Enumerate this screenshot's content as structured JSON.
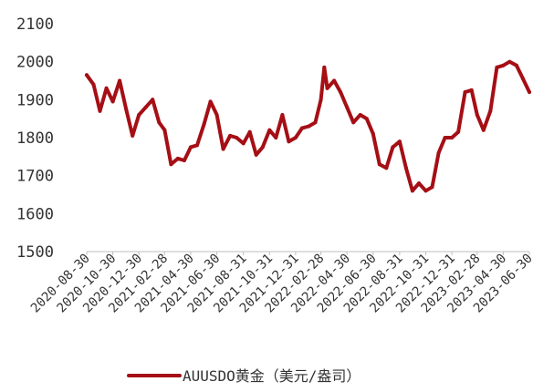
{
  "chart_data": {
    "type": "line",
    "title": "",
    "xlabel": "",
    "ylabel": "",
    "ylim": [
      1500,
      2100
    ],
    "yticks": [
      1500,
      1600,
      1700,
      1800,
      1900,
      2000,
      2100
    ],
    "grid": false,
    "legend_position": "bottom-center",
    "x_tick_labels": [
      "2020-08-30",
      "2020-10-30",
      "2020-12-30",
      "2021-02-28",
      "2021-04-30",
      "2021-06-30",
      "2021-08-31",
      "2021-10-31",
      "2021-12-31",
      "2022-02-28",
      "2022-04-30",
      "2022-06-30",
      "2022-08-31",
      "2022-10-31",
      "2022-12-31",
      "2023-02-28",
      "2023-04-30",
      "2023-06-30"
    ],
    "x": [
      "2020-08-30",
      "2020-09-15",
      "2020-09-30",
      "2020-10-15",
      "2020-10-30",
      "2020-11-15",
      "2020-11-30",
      "2020-12-15",
      "2020-12-30",
      "2021-01-15",
      "2021-01-31",
      "2021-02-15",
      "2021-02-28",
      "2021-03-15",
      "2021-03-31",
      "2021-04-15",
      "2021-04-30",
      "2021-05-15",
      "2021-05-31",
      "2021-06-15",
      "2021-06-30",
      "2021-07-15",
      "2021-07-31",
      "2021-08-15",
      "2021-08-31",
      "2021-09-15",
      "2021-09-30",
      "2021-10-15",
      "2021-10-31",
      "2021-11-15",
      "2021-11-30",
      "2021-12-15",
      "2021-12-31",
      "2022-01-15",
      "2022-01-31",
      "2022-02-15",
      "2022-02-28",
      "2022-03-08",
      "2022-03-15",
      "2022-03-31",
      "2022-04-15",
      "2022-04-30",
      "2022-05-15",
      "2022-05-31",
      "2022-06-15",
      "2022-06-30",
      "2022-07-15",
      "2022-07-31",
      "2022-08-15",
      "2022-08-31",
      "2022-09-15",
      "2022-09-30",
      "2022-10-15",
      "2022-10-31",
      "2022-11-15",
      "2022-11-30",
      "2022-12-15",
      "2022-12-31",
      "2023-01-15",
      "2023-01-31",
      "2023-02-15",
      "2023-02-28",
      "2023-03-15",
      "2023-03-31",
      "2023-04-15",
      "2023-04-30",
      "2023-05-15",
      "2023-05-31",
      "2023-06-15",
      "2023-06-30"
    ],
    "series": [
      {
        "name": "AUUSDO黄金（美元/盎司）",
        "color": "#a50f15",
        "values": [
          1965,
          1940,
          1870,
          1930,
          1895,
          1950,
          1875,
          1805,
          1860,
          1880,
          1900,
          1840,
          1820,
          1730,
          1745,
          1740,
          1775,
          1780,
          1835,
          1895,
          1860,
          1770,
          1805,
          1800,
          1785,
          1815,
          1755,
          1775,
          1820,
          1800,
          1860,
          1790,
          1800,
          1825,
          1830,
          1840,
          1900,
          1985,
          1930,
          1950,
          1920,
          1880,
          1840,
          1860,
          1850,
          1810,
          1730,
          1720,
          1775,
          1790,
          1720,
          1660,
          1680,
          1660,
          1670,
          1760,
          1800,
          1800,
          1815,
          1920,
          1925,
          1860,
          1820,
          1870,
          1985,
          1990,
          2000,
          1990,
          1955,
          1920
        ]
      }
    ]
  },
  "legend": {
    "label": "AUUSDO黄金（美元/盎司）",
    "color": "#a50f15"
  }
}
